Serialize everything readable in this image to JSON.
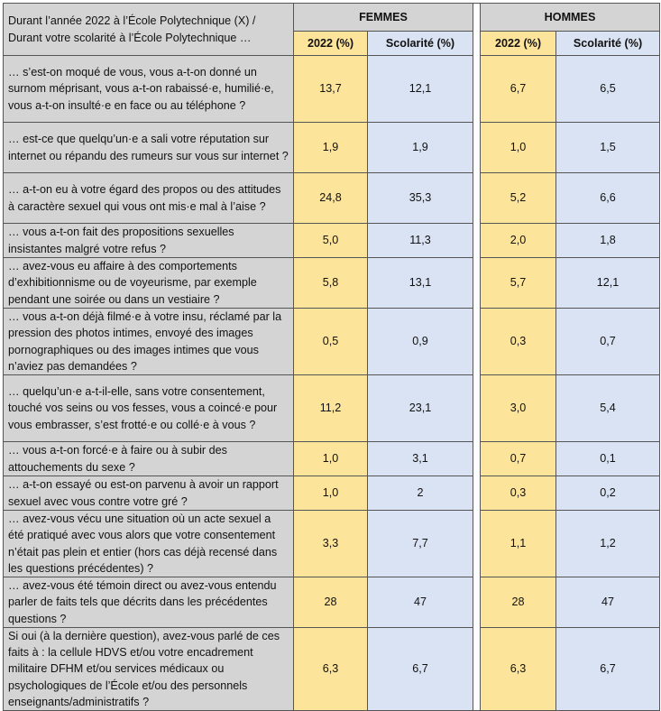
{
  "header": {
    "question_intro": "Durant l’année 2022 à l’École Polytechnique (X) / Durant votre scolarité à l’École Polytechnique …",
    "group_women": "FEMMES",
    "group_men": "HOMMES",
    "col_2022": "2022 (%)",
    "col_scolarite": "Scolarité (%)"
  },
  "rows": [
    {
      "question": "… s’est-on moqué de vous, vous a-t-on donné un surnom méprisant, vous a-t-on rabaissé·e, humilié·e, vous a-t-on insulté·e en face ou au téléphone ?",
      "f2022": "13,7",
      "fscol": "12,1",
      "h2022": "6,7",
      "hscol": "6,5"
    },
    {
      "question": "… est-ce que quelqu’un·e a sali votre réputation sur internet ou répandu des rumeurs sur vous sur internet ?",
      "f2022": "1,9",
      "fscol": "1,9",
      "h2022": "1,0",
      "hscol": "1,5"
    },
    {
      "question": "… a-t-on eu à votre égard des propos ou des attitudes à caractère sexuel qui vous ont mis·e mal à l’aise ?",
      "f2022": "24,8",
      "fscol": "35,3",
      "h2022": "5,2",
      "hscol": "6,6"
    },
    {
      "question": "… vous a-t-on fait des propositions sexuelles insistantes malgré votre refus ?",
      "f2022": "5,0",
      "fscol": "11,3",
      "h2022": "2,0",
      "hscol": "1,8"
    },
    {
      "question": "… avez-vous eu affaire à des comportements d’exhibitionnisme ou de voyeurisme, par exemple pendant une soirée ou dans un vestiaire ?",
      "f2022": "5,8",
      "fscol": "13,1",
      "h2022": "5,7",
      "hscol": "12,1"
    },
    {
      "question": "… vous a-t-on déjà filmé·e à votre insu, réclamé par la pression des photos intimes, envoyé des images pornographiques ou des images intimes que vous n’aviez pas demandées ?",
      "f2022": "0,5",
      "fscol": "0,9",
      "h2022": "0,3",
      "hscol": "0,7"
    },
    {
      "question": "… quelqu’un·e a-t-il-elle, sans votre consentement, touché vos seins ou vos fesses, vous a coincé·e pour vous embrasser, s’est frotté·e ou collé·e à vous ?",
      "f2022": "11,2",
      "fscol": "23,1",
      "h2022": "3,0",
      "hscol": "5,4"
    },
    {
      "question": "… vous a-t-on forcé·e à faire ou à subir des attouchements du sexe ?",
      "f2022": "1,0",
      "fscol": "3,1",
      "h2022": "0,7",
      "hscol": "0,1"
    },
    {
      "question": "… a-t-on essayé ou est-on parvenu à avoir un rapport sexuel avec vous contre votre gré ?",
      "f2022": "1,0",
      "fscol": "2",
      "h2022": "0,3",
      "hscol": "0,2"
    },
    {
      "question": "… avez-vous vécu une situation où un acte sexuel a été pratiqué avec vous alors que votre consentement n’était pas plein et entier (hors cas déjà recensé dans les questions précédentes) ?",
      "f2022": "3,3",
      "fscol": "7,7",
      "h2022": "1,1",
      "hscol": "1,2"
    },
    {
      "question": "… avez-vous été témoin direct ou avez-vous entendu parler de faits tels que décrits dans les précédentes questions ?",
      "f2022": "28",
      "fscol": "47",
      "h2022": "28",
      "hscol": "47"
    },
    {
      "question": "Si oui (à la dernière question), avez-vous parlé de ces faits à : la cellule HDVS et/ou votre encadrement militaire DFHM et/ou services médicaux ou psychologiques de l’École et/ou des personnels enseignants/administratifs ?",
      "f2022": "6,3",
      "fscol": "6,7",
      "h2022": "6,3",
      "hscol": "6,7"
    }
  ],
  "colors": {
    "question_bg": "#d4d4d4",
    "period_2022_bg": "#fde49b",
    "scolarite_bg": "#dae3f4",
    "border": "#555555"
  }
}
